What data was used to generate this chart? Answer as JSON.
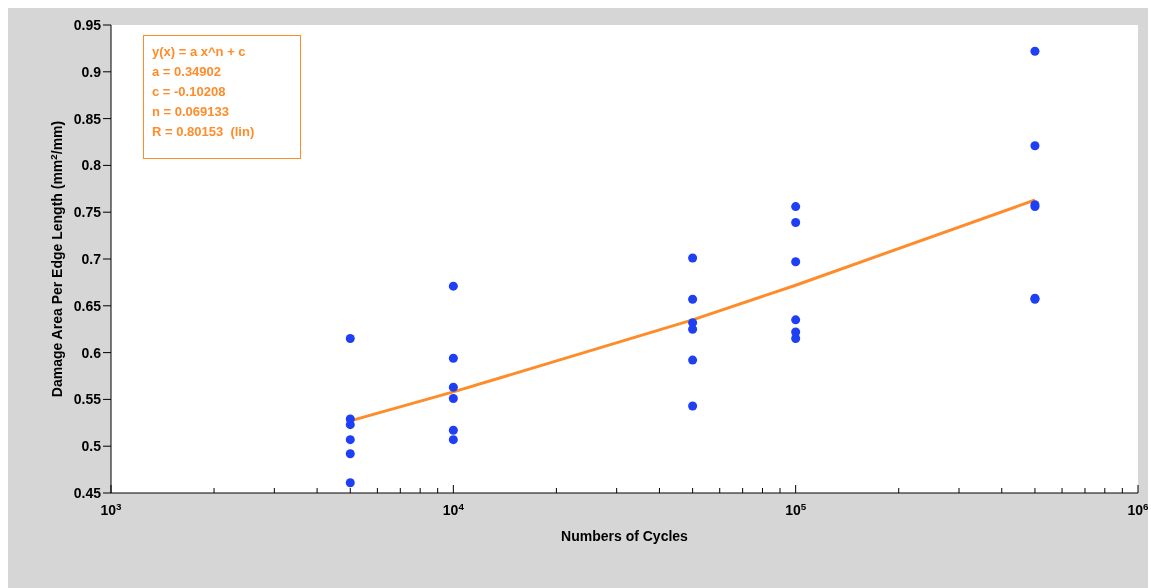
{
  "chart_data": {
    "type": "scatter",
    "xlabel": "Numbers of Cycles",
    "ylabel": "Damage Area Per Edge Length (mm$^{2}$/mm)",
    "annotations": [
      "y(x) = a x^n + c",
      "a = 0.34902",
      "c = -0.10208",
      "n = 0.069133",
      "R = 0.80153  (lin)"
    ],
    "log": "x",
    "xlim": [
      1000,
      1000000
    ],
    "xticks": [
      {
        "value": 1000,
        "label": "10$^{3}$"
      },
      {
        "value": 2000,
        "label": null
      },
      {
        "value": 3000,
        "label": null
      },
      {
        "value": 4000,
        "label": null
      },
      {
        "value": 5000,
        "label": null
      },
      {
        "value": 6000,
        "label": null
      },
      {
        "value": 7000,
        "label": null
      },
      {
        "value": 8000,
        "label": null
      },
      {
        "value": 9000,
        "label": null
      },
      {
        "value": 10000,
        "label": "10$^{4}$"
      },
      {
        "value": 20000,
        "label": null
      },
      {
        "value": 30000,
        "label": null
      },
      {
        "value": 40000,
        "label": null
      },
      {
        "value": 50000,
        "label": null
      },
      {
        "value": 60000,
        "label": null
      },
      {
        "value": 70000,
        "label": null
      },
      {
        "value": 80000,
        "label": null
      },
      {
        "value": 90000,
        "label": null
      },
      {
        "value": 100000,
        "label": "10$^{5}$"
      },
      {
        "value": 200000,
        "label": null
      },
      {
        "value": 300000,
        "label": null
      },
      {
        "value": 400000,
        "label": null
      },
      {
        "value": 500000,
        "label": null
      },
      {
        "value": 600000,
        "label": null
      },
      {
        "value": 700000,
        "label": null
      },
      {
        "value": 800000,
        "label": null
      },
      {
        "value": 900000,
        "label": null
      },
      {
        "value": 1000000,
        "label": "10$^{6}$"
      }
    ],
    "ylim": [
      0.45,
      0.95
    ],
    "yticks": [
      0.45,
      0.5,
      0.55,
      0.6,
      0.65,
      0.7,
      0.75,
      0.8,
      0.85,
      0.9,
      0.95
    ],
    "grid": false,
    "legend": false,
    "marker": "circle",
    "series": [
      {
        "color": "#1f3ff5",
        "x": [
          5000,
          5000,
          5000,
          5000,
          5000,
          5000,
          10000,
          10000,
          10000,
          10000,
          10000,
          10000,
          50000,
          50000,
          50000,
          50000,
          50000,
          50000,
          100000,
          100000,
          100000,
          100000,
          100000,
          100000,
          500000,
          500000,
          500000,
          500000,
          500000,
          500000
        ],
        "values": [
          0.615,
          0.529,
          0.523,
          0.507,
          0.492,
          0.461,
          0.671,
          0.594,
          0.563,
          0.551,
          0.517,
          0.507,
          0.701,
          0.657,
          0.632,
          0.625,
          0.592,
          0.543,
          0.756,
          0.739,
          0.697,
          0.635,
          0.622,
          0.615,
          0.922,
          0.821,
          0.758,
          0.756,
          0.658,
          0.657
        ]
      },
      {
        "type": "line",
        "color": "#ff8c2a",
        "x": [
          5000,
          10000,
          50000,
          100000,
          500000
        ],
        "values": [
          0.527,
          0.558,
          0.635,
          0.672,
          0.763
        ],
        "marker": "none",
        "line_style": "solid"
      }
    ]
  }
}
